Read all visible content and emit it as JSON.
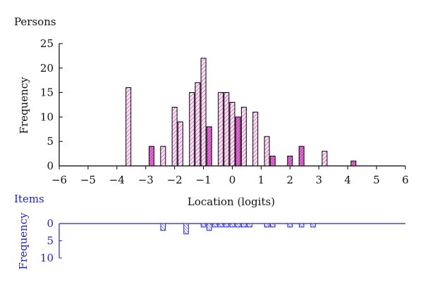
{
  "chart_data": [
    {
      "type": "bar",
      "title": "Persons",
      "xlabel": "Location (logits)",
      "ylabel": "Frequency",
      "xlim": [
        -6,
        6
      ],
      "ylim": [
        0,
        25
      ],
      "x_ticks": [
        "−6",
        "−5",
        "−4",
        "−3",
        "−2",
        "−1",
        "0",
        "1",
        "2",
        "3",
        "4",
        "5",
        "6"
      ],
      "y_ticks": [
        "0",
        "5",
        "10",
        "15",
        "20",
        "25"
      ],
      "bin_width": 0.2,
      "bars": [
        {
          "x": -3.6,
          "value": 16,
          "dark": false
        },
        {
          "x": -2.8,
          "value": 4,
          "dark": true
        },
        {
          "x": -2.4,
          "value": 4,
          "dark": false
        },
        {
          "x": -2.0,
          "value": 12,
          "dark": false
        },
        {
          "x": -1.8,
          "value": 9,
          "dark": false
        },
        {
          "x": -1.4,
          "value": 15,
          "dark": false
        },
        {
          "x": -1.2,
          "value": 17,
          "dark": false
        },
        {
          "x": -1.0,
          "value": 22,
          "dark": false
        },
        {
          "x": -0.8,
          "value": 8,
          "dark": true
        },
        {
          "x": -0.4,
          "value": 15,
          "dark": false
        },
        {
          "x": -0.2,
          "value": 15,
          "dark": false
        },
        {
          "x": 0.0,
          "value": 13,
          "dark": false
        },
        {
          "x": 0.2,
          "value": 10,
          "dark": true
        },
        {
          "x": 0.4,
          "value": 12,
          "dark": false
        },
        {
          "x": 0.8,
          "value": 11,
          "dark": false
        },
        {
          "x": 1.2,
          "value": 6,
          "dark": false
        },
        {
          "x": 1.4,
          "value": 2,
          "dark": true
        },
        {
          "x": 2.0,
          "value": 2,
          "dark": true
        },
        {
          "x": 2.4,
          "value": 4,
          "dark": true
        },
        {
          "x": 3.2,
          "value": 3,
          "dark": false
        },
        {
          "x": 4.2,
          "value": 1,
          "dark": true
        }
      ]
    },
    {
      "type": "bar",
      "title": "Items",
      "ylabel": "Frequency",
      "ylim": [
        0,
        10
      ],
      "y_ticks": [
        "0",
        "5",
        "10"
      ],
      "orientation": "downward",
      "bin_width": 0.2,
      "bars": [
        {
          "x": -2.4,
          "value": 2
        },
        {
          "x": -1.6,
          "value": 3
        },
        {
          "x": -1.0,
          "value": 1
        },
        {
          "x": -0.8,
          "value": 2
        },
        {
          "x": -0.6,
          "value": 1
        },
        {
          "x": -0.4,
          "value": 1
        },
        {
          "x": -0.2,
          "value": 1
        },
        {
          "x": 0.0,
          "value": 1
        },
        {
          "x": 0.2,
          "value": 1
        },
        {
          "x": 0.4,
          "value": 1
        },
        {
          "x": 0.6,
          "value": 1
        },
        {
          "x": 1.2,
          "value": 1
        },
        {
          "x": 1.4,
          "value": 1
        },
        {
          "x": 2.0,
          "value": 1
        },
        {
          "x": 2.4,
          "value": 1
        },
        {
          "x": 2.8,
          "value": 1
        }
      ]
    }
  ],
  "colors": {
    "persons_outline": "#000000",
    "persons_fill_light": "#f7d4f2",
    "persons_fill_dark": "#cc22bb",
    "persons_hatch": "#d4148c",
    "items_color": "#2222dd"
  }
}
